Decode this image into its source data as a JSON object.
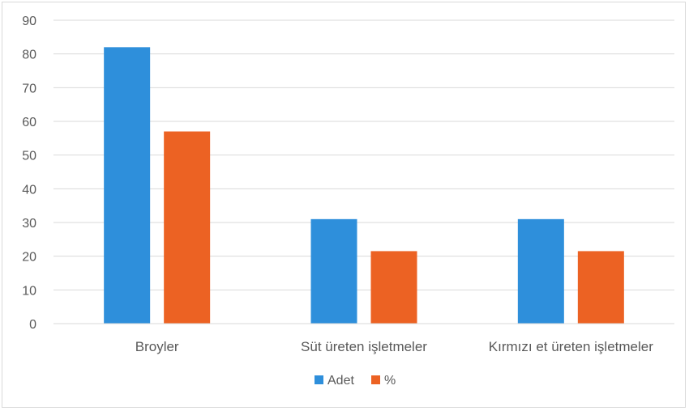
{
  "chart_data": {
    "type": "bar",
    "categories": [
      "Broyler",
      "Süt üreten işletmeler",
      "Kırmızı et üreten işletmeler"
    ],
    "series": [
      {
        "name": "Adet",
        "values": [
          82,
          31,
          31
        ],
        "color": "#2e8fdb"
      },
      {
        "name": "%",
        "values": [
          57,
          21.5,
          21.5
        ],
        "color": "#ec6223"
      }
    ],
    "title": "",
    "xlabel": "",
    "ylabel": "",
    "ylim": [
      0,
      90
    ],
    "yticks": [
      0,
      10,
      20,
      30,
      40,
      50,
      60,
      70,
      80,
      90
    ],
    "grid": true,
    "legend_position": "bottom"
  }
}
